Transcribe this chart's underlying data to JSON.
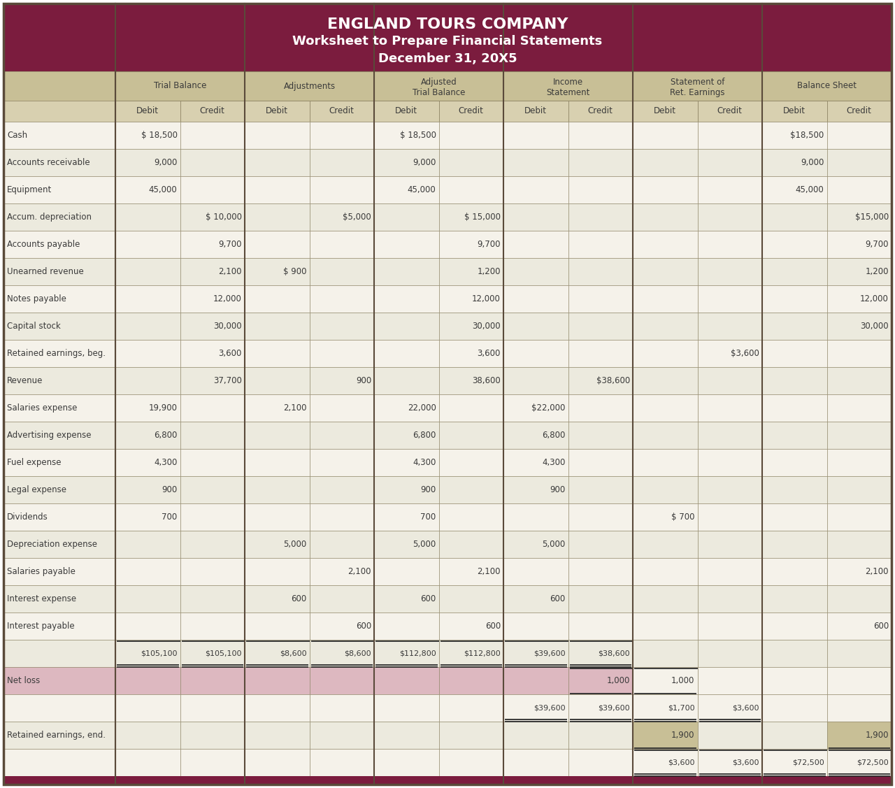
{
  "title_line1": "ENGLAND TOURS COMPANY",
  "title_line2": "Worksheet to Prepare Financial Statements",
  "title_line3": "December 31, 20X5",
  "header_bg": "#7B1C3E",
  "header_text_color": "#FFFFFF",
  "col_header_bg": "#C8BF96",
  "col_header_text": "#3A3A3A",
  "subheader_bg": "#D8D0B0",
  "row_bg_light": "#F5F2EA",
  "row_bg_dark": "#ECEADE",
  "net_loss_bg": "#DDB8C0",
  "ret_earn_end_bg": "#C8BF96",
  "border_color": "#8A8060",
  "thick_border": "#5A4A3A",
  "text_color": "#3A3A3A",
  "line_color": "#2A2A2A",
  "col_labels": [
    "Debit",
    "Credit",
    "Debit",
    "Credit",
    "Debit",
    "Credit",
    "Debit",
    "Credit",
    "Debit",
    "Credit",
    "Debit",
    "Credit"
  ],
  "group_labels": [
    "Trial Balance",
    "Adjustments",
    "Adjusted\nTrial Balance",
    "Income\nStatement",
    "Statement of\nRet. Earnings",
    "Balance Sheet"
  ],
  "rows": [
    {
      "account": "Cash",
      "vals": [
        "$ 18,500",
        "",
        "",
        "",
        "$ 18,500",
        "",
        "",
        "",
        "",
        "",
        "$18,500",
        ""
      ],
      "bg": "light"
    },
    {
      "account": "Accounts receivable",
      "vals": [
        "9,000",
        "",
        "",
        "",
        "9,000",
        "",
        "",
        "",
        "",
        "",
        "9,000",
        ""
      ],
      "bg": "dark"
    },
    {
      "account": "Equipment",
      "vals": [
        "45,000",
        "",
        "",
        "",
        "45,000",
        "",
        "",
        "",
        "",
        "",
        "45,000",
        ""
      ],
      "bg": "light"
    },
    {
      "account": "Accum. depreciation",
      "vals": [
        "",
        "$ 10,000",
        "",
        "$5,000",
        "",
        "$ 15,000",
        "",
        "",
        "",
        "",
        "",
        "$15,000"
      ],
      "bg": "dark"
    },
    {
      "account": "Accounts payable",
      "vals": [
        "",
        "9,700",
        "",
        "",
        "",
        "9,700",
        "",
        "",
        "",
        "",
        "",
        "9,700"
      ],
      "bg": "light"
    },
    {
      "account": "Unearned revenue",
      "vals": [
        "",
        "2,100",
        "$ 900",
        "",
        "",
        "1,200",
        "",
        "",
        "",
        "",
        "",
        "1,200"
      ],
      "bg": "dark"
    },
    {
      "account": "Notes payable",
      "vals": [
        "",
        "12,000",
        "",
        "",
        "",
        "12,000",
        "",
        "",
        "",
        "",
        "",
        "12,000"
      ],
      "bg": "light"
    },
    {
      "account": "Capital stock",
      "vals": [
        "",
        "30,000",
        "",
        "",
        "",
        "30,000",
        "",
        "",
        "",
        "",
        "",
        "30,000"
      ],
      "bg": "dark"
    },
    {
      "account": "Retained earnings, beg.",
      "vals": [
        "",
        "3,600",
        "",
        "",
        "",
        "3,600",
        "",
        "",
        "",
        "$3,600",
        "",
        ""
      ],
      "bg": "light"
    },
    {
      "account": "Revenue",
      "vals": [
        "",
        "37,700",
        "",
        "900",
        "",
        "38,600",
        "",
        "$38,600",
        "",
        "",
        "",
        ""
      ],
      "bg": "dark"
    },
    {
      "account": "Salaries expense",
      "vals": [
        "19,900",
        "",
        "2,100",
        "",
        "22,000",
        "",
        "$22,000",
        "",
        "",
        "",
        "",
        ""
      ],
      "bg": "light"
    },
    {
      "account": "Advertising expense",
      "vals": [
        "6,800",
        "",
        "",
        "",
        "6,800",
        "",
        "6,800",
        "",
        "",
        "",
        "",
        ""
      ],
      "bg": "dark"
    },
    {
      "account": "Fuel expense",
      "vals": [
        "4,300",
        "",
        "",
        "",
        "4,300",
        "",
        "4,300",
        "",
        "",
        "",
        "",
        ""
      ],
      "bg": "light"
    },
    {
      "account": "Legal expense",
      "vals": [
        "900",
        "",
        "",
        "",
        "900",
        "",
        "900",
        "",
        "",
        "",
        "",
        ""
      ],
      "bg": "dark"
    },
    {
      "account": "Dividends",
      "vals": [
        "700",
        "",
        "",
        "",
        "700",
        "",
        "",
        "",
        "$ 700",
        "",
        "",
        ""
      ],
      "bg": "light"
    },
    {
      "account": "Depreciation expense",
      "vals": [
        "",
        "",
        "5,000",
        "",
        "5,000",
        "",
        "5,000",
        "",
        "",
        "",
        "",
        ""
      ],
      "bg": "dark"
    },
    {
      "account": "Salaries payable",
      "vals": [
        "",
        "",
        "",
        "2,100",
        "",
        "2,100",
        "",
        "",
        "",
        "",
        "",
        "2,100"
      ],
      "bg": "light"
    },
    {
      "account": "Interest expense",
      "vals": [
        "",
        "",
        "600",
        "",
        "600",
        "",
        "600",
        "",
        "",
        "",
        "",
        ""
      ],
      "bg": "dark"
    },
    {
      "account": "Interest payable",
      "vals": [
        "",
        "",
        "",
        "600",
        "",
        "600",
        "",
        "",
        "",
        "",
        "",
        "600"
      ],
      "bg": "light"
    }
  ],
  "totals_vals": [
    "$105,100",
    "$105,100",
    "$8,600",
    "$8,600",
    "$112,800",
    "$112,800",
    "$39,600",
    "$38,600",
    "",
    "",
    "",
    ""
  ],
  "net_loss_vals": [
    "",
    "",
    "",
    "",
    "",
    "",
    "",
    "1,000",
    "1,000",
    "",
    "",
    ""
  ],
  "subtotals_vals": [
    "",
    "",
    "",
    "",
    "",
    "",
    "$39,600",
    "$39,600",
    "$1,700",
    "$3,600",
    "",
    ""
  ],
  "re_end_vals": [
    "",
    "",
    "",
    "",
    "",
    "",
    "",
    "",
    "1,900",
    "",
    "",
    "1,900"
  ],
  "final_vals": [
    "",
    "",
    "",
    "",
    "",
    "",
    "",
    "",
    "$3,600",
    "$3,600",
    "$72,500",
    "$72,500"
  ]
}
